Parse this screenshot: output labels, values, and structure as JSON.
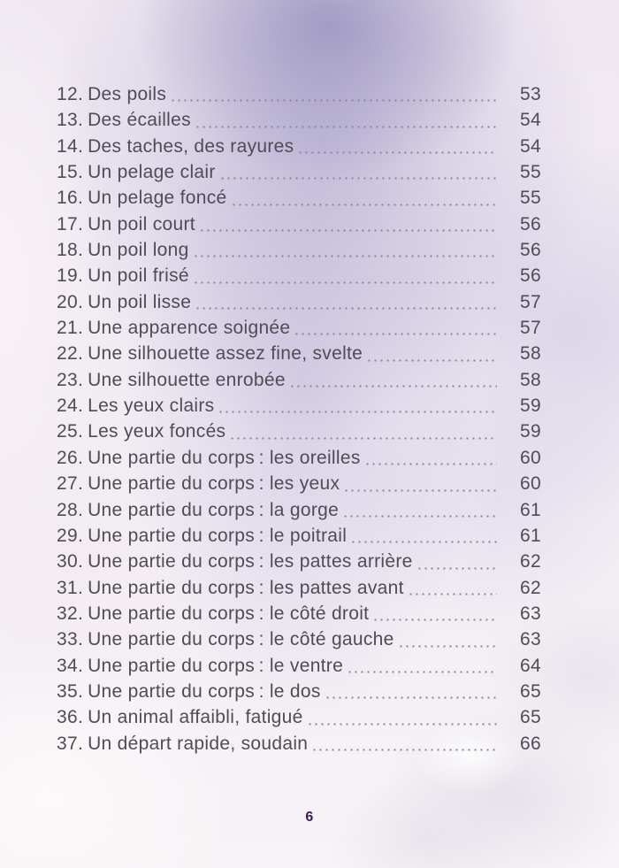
{
  "document": {
    "kind": "book-table-of-contents-page",
    "language": "fr"
  },
  "toc": {
    "entries": [
      {
        "number": "12.",
        "title": "Des poils",
        "page": "53"
      },
      {
        "number": "13.",
        "title": "Des écailles",
        "page": "54"
      },
      {
        "number": "14.",
        "title": "Des taches, des rayures",
        "page": "54"
      },
      {
        "number": "15.",
        "title": "Un pelage clair",
        "page": "55"
      },
      {
        "number": "16.",
        "title": "Un pelage foncé",
        "page": "55"
      },
      {
        "number": "17.",
        "title": "Un poil court",
        "page": "56"
      },
      {
        "number": "18.",
        "title": "Un poil long",
        "page": "56"
      },
      {
        "number": "19.",
        "title": "Un poil frisé",
        "page": "56"
      },
      {
        "number": "20.",
        "title": "Un poil lisse",
        "page": "57"
      },
      {
        "number": "21.",
        "title": "Une apparence soignée",
        "page": "57"
      },
      {
        "number": "22.",
        "title": "Une silhouette assez fine, svelte",
        "page": "58"
      },
      {
        "number": "23.",
        "title": "Une silhouette enrobée",
        "page": "58"
      },
      {
        "number": "24.",
        "title": "Les yeux clairs",
        "page": "59"
      },
      {
        "number": "25.",
        "title": "Les yeux foncés",
        "page": "59"
      },
      {
        "number": "26.",
        "title": "Une partie du corps : les oreilles",
        "page": "60"
      },
      {
        "number": "27.",
        "title": "Une partie du corps : les yeux",
        "page": "60"
      },
      {
        "number": "28.",
        "title": "Une partie du corps : la gorge",
        "page": "61"
      },
      {
        "number": "29.",
        "title": "Une partie du corps : le poitrail",
        "page": "61"
      },
      {
        "number": "30.",
        "title": "Une partie du corps : les pattes arrière",
        "page": "62"
      },
      {
        "number": "31.",
        "title": "Une partie du corps : les pattes avant",
        "page": "62"
      },
      {
        "number": "32.",
        "title": "Une partie du corps : le côté droit",
        "page": "63"
      },
      {
        "number": "33.",
        "title": "Une partie du corps : le côté gauche",
        "page": "63"
      },
      {
        "number": "34.",
        "title": "Une partie du corps : le ventre",
        "page": "64"
      },
      {
        "number": "35.",
        "title": "Une partie du corps : le dos",
        "page": "65"
      },
      {
        "number": "36.",
        "title": "Un animal affaibli, fatigué",
        "page": "65"
      },
      {
        "number": "37.",
        "title": "Un départ rapide, soudain",
        "page": "66"
      }
    ]
  },
  "footer": {
    "page_number": "6"
  },
  "colors": {
    "entry_text": "#4f4c55",
    "dot_leader": "#8b8595",
    "folio_text": "#3a1d5c",
    "wash_purple": "#a29bc8",
    "paper_base": "#f2ecf3"
  }
}
